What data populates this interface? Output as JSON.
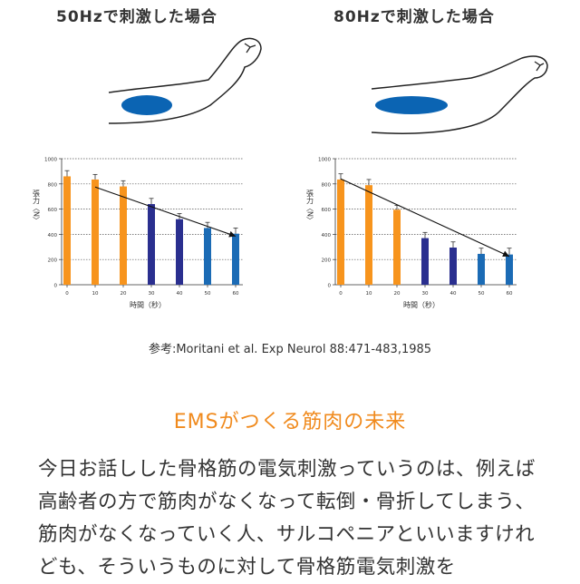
{
  "colors": {
    "orange": "#f7941d",
    "navy": "#2a2f8f",
    "blue": "#1b6bb5",
    "heading": "#f08a1d",
    "muscle": "#0b64b3"
  },
  "chart_data": [
    {
      "type": "bar",
      "title": "50Hzで刺激した場合",
      "categories": [
        "0",
        "10",
        "20",
        "30",
        "40",
        "50",
        "60"
      ],
      "values": [
        860,
        835,
        780,
        640,
        520,
        450,
        405
      ],
      "errors": [
        45,
        40,
        45,
        45,
        45,
        45,
        45
      ],
      "bar_colors": [
        "orange",
        "orange",
        "orange",
        "navy",
        "navy",
        "blue",
        "blue"
      ],
      "trend": {
        "from": [
          10,
          775
        ],
        "to": [
          60,
          385
        ]
      },
      "xlabel": "時間（秒）",
      "ylabel": "張力〈N〉",
      "yticks": [
        0,
        200,
        400,
        600,
        800,
        1000
      ],
      "ylim": [
        0,
        1000
      ]
    },
    {
      "type": "bar",
      "title": "80Hzで刺激した場合",
      "categories": [
        "0",
        "10",
        "20",
        "30",
        "40",
        "50",
        "60"
      ],
      "values": [
        835,
        790,
        595,
        370,
        295,
        245,
        240
      ],
      "errors": [
        45,
        45,
        35,
        45,
        45,
        45,
        50
      ],
      "bar_colors": [
        "orange",
        "orange",
        "orange",
        "navy",
        "navy",
        "blue",
        "blue"
      ],
      "trend": {
        "from": [
          0,
          840
        ],
        "to": [
          60,
          225
        ]
      },
      "xlabel": "時間（秒）",
      "ylabel": "張力〈N〉",
      "yticks": [
        0,
        200,
        400,
        600,
        800,
        1000
      ],
      "ylim": [
        0,
        1000
      ]
    }
  ],
  "reference": "参考:Moritani et al. Exp Neurol 88:471-483,1985",
  "heading": "EMSがつくる筋肉の未来",
  "body": "今日お話しした骨格筋の電気刺激っていうのは、例えば高齢者の方で筋肉がなくなって転倒・骨折してしまう、筋肉がなくなっていく人、サルコペニアといいますけれども、そういうものに対して骨格筋電気刺激を"
}
